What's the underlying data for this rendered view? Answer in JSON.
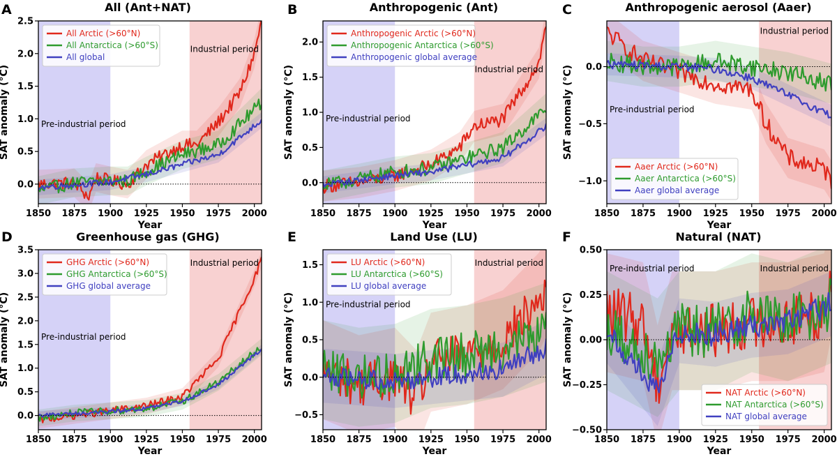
{
  "colors": {
    "arctic": "#e0281c",
    "antarctica": "#2e9b2e",
    "global": "#4040c0",
    "pre_industrial_shade": "#b9b4f2",
    "industrial_shade": "#f4b8b8"
  },
  "chart_data": [
    {
      "id": "A",
      "type": "line",
      "letter": "A",
      "title": "All (Ant+NAT)",
      "xlabel": "Year",
      "ylabel": "SAT anomaly (°C)",
      "xlim": [
        1850,
        2005
      ],
      "ylim": [
        -0.3,
        2.5
      ],
      "xticks": [
        1850,
        1875,
        1900,
        1925,
        1950,
        1975,
        2000
      ],
      "xtick_labels": [
        "1850",
        "1875",
        "1900",
        "1925",
        "1950",
        "1975",
        "2000"
      ],
      "yticks": [
        0.0,
        0.5,
        1.0,
        1.5,
        2.0,
        2.5
      ],
      "ytick_labels": [
        "0.0",
        "0.5",
        "1.0",
        "1.5",
        "2.0",
        "2.5"
      ],
      "pre_industrial_period": [
        1850,
        1900
      ],
      "industrial_period": [
        1955,
        2005
      ],
      "pre_industrial_label": "Pre-industrial period",
      "industrial_label": "Industrial period",
      "legend_loc": "upper-left",
      "noise": 0.1,
      "series": [
        {
          "key": "arctic",
          "name": "All Arctic (>60°N)",
          "x": [
            1850,
            1875,
            1885,
            1890,
            1900,
            1912,
            1925,
            1950,
            1960,
            1975,
            1990,
            2000,
            2005
          ],
          "y": [
            0.0,
            0.02,
            -0.2,
            0.1,
            0.05,
            0.0,
            0.3,
            0.6,
            0.6,
            0.95,
            1.4,
            2.0,
            2.5
          ]
        },
        {
          "key": "antarctica",
          "name": "All Antarctica (>60°S)",
          "x": [
            1850,
            1875,
            1900,
            1912,
            1925,
            1950,
            1975,
            2005
          ],
          "y": [
            -0.1,
            0.02,
            0.05,
            0.05,
            0.2,
            0.45,
            0.6,
            1.25
          ]
        },
        {
          "key": "global",
          "name": "All global",
          "x": [
            1850,
            1900,
            1925,
            1950,
            1975,
            2005
          ],
          "y": [
            -0.05,
            0.03,
            0.15,
            0.3,
            0.45,
            0.98
          ]
        }
      ]
    },
    {
      "id": "B",
      "type": "line",
      "letter": "B",
      "title": "Anthropogenic (Ant)",
      "xlabel": "Year",
      "ylabel": "SAT anomaly (°C)",
      "xlim": [
        1850,
        2005
      ],
      "ylim": [
        -0.3,
        2.3
      ],
      "xticks": [
        1850,
        1875,
        1900,
        1925,
        1950,
        1975,
        2000
      ],
      "xtick_labels": [
        "1850",
        "1875",
        "1900",
        "1925",
        "1950",
        "1975",
        "2000"
      ],
      "yticks": [
        0.0,
        0.5,
        1.0,
        1.5,
        2.0
      ],
      "ytick_labels": [
        "0.0",
        "0.5",
        "1.0",
        "1.5",
        "2.0"
      ],
      "pre_industrial_period": [
        1850,
        1900
      ],
      "industrial_period": [
        1955,
        2005
      ],
      "pre_industrial_label": "Pre-industrial period",
      "industrial_label": "Industrial period",
      "legend_loc": "upper-left",
      "noise": 0.1,
      "series": [
        {
          "key": "arctic",
          "name": "Anthropogenic Arctic (>60°N)",
          "x": [
            1850,
            1875,
            1900,
            1925,
            1945,
            1955,
            1975,
            2000,
            2005
          ],
          "y": [
            -0.05,
            0.0,
            0.1,
            0.25,
            0.5,
            0.8,
            0.9,
            1.7,
            2.25
          ]
        },
        {
          "key": "antarctica",
          "name": "Anthropogenic Antarctica (>60°S)",
          "x": [
            1850,
            1875,
            1900,
            1925,
            1950,
            1975,
            2005
          ],
          "y": [
            -0.05,
            0.05,
            0.15,
            0.2,
            0.35,
            0.5,
            1.05
          ]
        },
        {
          "key": "global",
          "name": "Anthropogenic global average",
          "x": [
            1850,
            1900,
            1925,
            1950,
            1975,
            2005
          ],
          "y": [
            -0.03,
            0.1,
            0.15,
            0.25,
            0.35,
            0.8
          ]
        }
      ]
    },
    {
      "id": "C",
      "type": "line",
      "letter": "C",
      "title": "Anthropogenic aerosol (Aaer)",
      "xlabel": "Year",
      "ylabel": "SAT anomaly (°C)",
      "xlim": [
        1850,
        2005
      ],
      "ylim": [
        -1.2,
        0.4
      ],
      "xticks": [
        1850,
        1875,
        1900,
        1925,
        1950,
        1975,
        2000
      ],
      "xtick_labels": [
        "1850",
        "1875",
        "1900",
        "1925",
        "1950",
        "1975",
        "2000"
      ],
      "yticks": [
        -1.0,
        -0.5,
        0.0
      ],
      "ytick_labels": [
        "−1.0",
        "−0.5",
        "0.0"
      ],
      "pre_industrial_period": [
        1850,
        1900
      ],
      "industrial_period": [
        1955,
        2005
      ],
      "pre_industrial_label": "Pre-industrial period",
      "industrial_label": "Industrial period",
      "legend_loc": "lower-left",
      "noise": 0.08,
      "series": [
        {
          "key": "arctic",
          "name": "Aaer Arctic (>60°N)",
          "x": [
            1850,
            1875,
            1900,
            1925,
            1950,
            1960,
            1975,
            2000,
            2005
          ],
          "y": [
            0.3,
            0.05,
            -0.05,
            -0.15,
            -0.2,
            -0.5,
            -0.8,
            -0.9,
            -1.0
          ]
        },
        {
          "key": "antarctica",
          "name": "Aaer Antarctica (>60°S)",
          "x": [
            1850,
            1875,
            1900,
            1925,
            1950,
            1975,
            2005
          ],
          "y": [
            0.05,
            0.0,
            0.0,
            0.05,
            0.0,
            -0.05,
            -0.15
          ]
        },
        {
          "key": "global",
          "name": "Aaer global average",
          "x": [
            1850,
            1900,
            1925,
            1950,
            1975,
            2005
          ],
          "y": [
            0.02,
            0.0,
            -0.02,
            -0.1,
            -0.25,
            -0.43
          ]
        }
      ]
    },
    {
      "id": "D",
      "type": "line",
      "letter": "D",
      "title": "Greenhouse gas (GHG)",
      "xlabel": "Year",
      "ylabel": "SAT anomaly (°C)",
      "xlim": [
        1850,
        2005
      ],
      "ylim": [
        -0.3,
        3.5
      ],
      "xticks": [
        1850,
        1875,
        1900,
        1925,
        1950,
        1975,
        2000
      ],
      "xtick_labels": [
        "1850",
        "1875",
        "1900",
        "1925",
        "1950",
        "1975",
        "2000"
      ],
      "yticks": [
        0.0,
        0.5,
        1.0,
        1.5,
        2.0,
        2.5,
        3.0,
        3.5
      ],
      "ytick_labels": [
        "0.0",
        "0.5",
        "1.0",
        "1.5",
        "2.0",
        "2.5",
        "3.0",
        "3.5"
      ],
      "pre_industrial_period": [
        1850,
        1900
      ],
      "industrial_period": [
        1955,
        2005
      ],
      "pre_industrial_label": "Pre-industrial period",
      "industrial_label": "Industrial period",
      "legend_loc": "upper-left",
      "noise": 0.08,
      "series": [
        {
          "key": "arctic",
          "name": "GHG Arctic (>60°N)",
          "x": [
            1850,
            1875,
            1900,
            1925,
            1950,
            1975,
            2000,
            2005
          ],
          "y": [
            -0.1,
            0.0,
            0.1,
            0.2,
            0.4,
            1.2,
            2.9,
            3.3
          ]
        },
        {
          "key": "antarctica",
          "name": "GHG Antarctica (>60°S)",
          "x": [
            1850,
            1875,
            1900,
            1925,
            1950,
            1975,
            2005
          ],
          "y": [
            -0.05,
            0.05,
            0.1,
            0.15,
            0.3,
            0.7,
            1.45
          ]
        },
        {
          "key": "global",
          "name": "GHG global average",
          "x": [
            1850,
            1900,
            1925,
            1950,
            1975,
            2005
          ],
          "y": [
            0.0,
            0.08,
            0.15,
            0.3,
            0.65,
            1.4
          ]
        }
      ]
    },
    {
      "id": "E",
      "type": "line",
      "letter": "E",
      "title": "Land Use (LU)",
      "xlabel": "Year",
      "ylabel": "SAT anomaly (°C)",
      "xlim": [
        1850,
        2005
      ],
      "ylim": [
        -0.7,
        1.7
      ],
      "xticks": [
        1850,
        1875,
        1900,
        1925,
        1950,
        1975,
        2000
      ],
      "xtick_labels": [
        "1850",
        "1875",
        "1900",
        "1925",
        "1950",
        "1975",
        "2000"
      ],
      "yticks": [
        -0.5,
        0.0,
        0.5,
        1.0,
        1.5
      ],
      "ytick_labels": [
        "−0.5",
        "0.0",
        "0.5",
        "1.0",
        "1.5"
      ],
      "pre_industrial_period": [
        1850,
        1900
      ],
      "industrial_period": [
        1955,
        2005
      ],
      "pre_industrial_label": "Pre-industrial period",
      "industrial_label": "Industrial period",
      "legend_loc": "upper-left",
      "noise": 0.3,
      "series": [
        {
          "key": "arctic",
          "name": "LU Arctic (>60°N)",
          "x": [
            1850,
            1875,
            1900,
            1915,
            1925,
            1950,
            1975,
            2000,
            2005
          ],
          "y": [
            0.1,
            -0.1,
            0.0,
            -0.3,
            0.2,
            0.3,
            0.5,
            1.0,
            1.2
          ]
        },
        {
          "key": "antarctica",
          "name": "LU Antarctica (>60°S)",
          "x": [
            1850,
            1875,
            1900,
            1925,
            1950,
            1975,
            2005
          ],
          "y": [
            0.1,
            0.0,
            0.05,
            0.25,
            0.3,
            0.4,
            0.6
          ]
        },
        {
          "key": "global",
          "name": "LU global average",
          "x": [
            1850,
            1900,
            1925,
            1950,
            1975,
            2005
          ],
          "y": [
            0.02,
            -0.05,
            0.0,
            0.05,
            0.1,
            0.4
          ]
        }
      ]
    },
    {
      "id": "F",
      "type": "line",
      "letter": "F",
      "title": "Natural (NAT)",
      "xlabel": "Year",
      "ylabel": "SAT anomaly (°C)",
      "xlim": [
        1850,
        2005
      ],
      "ylim": [
        -0.5,
        0.5
      ],
      "xticks": [
        1850,
        1875,
        1900,
        1925,
        1950,
        1975,
        2000
      ],
      "xtick_labels": [
        "1850",
        "1875",
        "1900",
        "1925",
        "1950",
        "1975",
        "2000"
      ],
      "yticks": [
        -0.5,
        -0.25,
        0.0,
        0.25,
        0.5
      ],
      "ytick_labels": [
        "−0.50",
        "−0.25",
        "0.00",
        "0.25",
        "0.50"
      ],
      "pre_industrial_period": [
        1850,
        1900
      ],
      "industrial_period": [
        1955,
        2005
      ],
      "pre_industrial_label": "Pre-industrial period",
      "industrial_label": "Industrial period",
      "legend_loc": "lower-right",
      "noise": 0.15,
      "series": [
        {
          "key": "arctic",
          "name": "NAT Arctic (>60°N)",
          "x": [
            1850,
            1875,
            1885,
            1895,
            1925,
            1950,
            1975,
            2000,
            2005
          ],
          "y": [
            0.15,
            0.1,
            -0.25,
            0.05,
            0.05,
            0.1,
            0.1,
            0.15,
            0.35
          ]
        },
        {
          "key": "antarctica",
          "name": "NAT Antarctica (>60°S)",
          "x": [
            1850,
            1885,
            1900,
            1925,
            1950,
            1975,
            2005
          ],
          "y": [
            0.05,
            -0.1,
            0.05,
            0.05,
            0.15,
            0.1,
            0.2
          ]
        },
        {
          "key": "global",
          "name": "NAT global average",
          "x": [
            1850,
            1885,
            1900,
            1925,
            1950,
            1975,
            2005
          ],
          "y": [
            0.05,
            -0.3,
            0.05,
            0.03,
            0.08,
            0.1,
            0.2
          ]
        }
      ]
    }
  ]
}
